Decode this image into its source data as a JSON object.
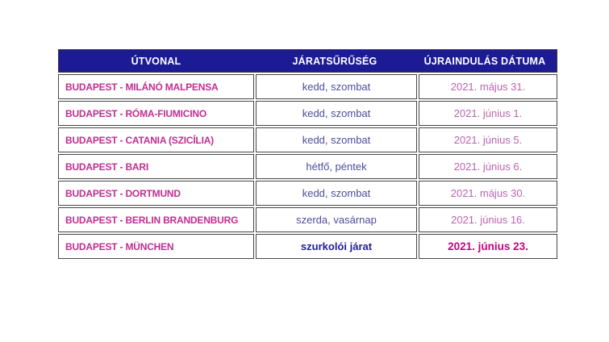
{
  "page": {
    "background_color": "#ffffff"
  },
  "table": {
    "columns": [
      "ÚTVONAL",
      "JÁRATSŰRŰSÉG",
      "ÚJRAINDULÁS DÁTUMA"
    ],
    "rows": [
      {
        "route": "BUDAPEST - MILÁNÓ MALPENSA",
        "frequency": "kedd, szombat",
        "restart_date": "2021. május 31.",
        "highlight": false
      },
      {
        "route": "BUDAPEST - RÓMA-FIUMICINO",
        "frequency": "kedd, szombat",
        "restart_date": "2021. június 1.",
        "highlight": false
      },
      {
        "route": "BUDAPEST - CATANIA (SZICÍLIA)",
        "frequency": "kedd, szombat",
        "restart_date": "2021. június 5.",
        "highlight": false
      },
      {
        "route": "BUDAPEST - BARI",
        "frequency": "hétfő, péntek",
        "restart_date": "2021. június 6.",
        "highlight": false
      },
      {
        "route": "BUDAPEST - DORTMUND",
        "frequency": "kedd, szombat",
        "restart_date": "2021. május 30.",
        "highlight": false
      },
      {
        "route": "BUDAPEST - BERLIN BRANDENBURG",
        "frequency": "szerda, vasárnap",
        "restart_date": "2021. június 16.",
        "highlight": false
      },
      {
        "route": "BUDAPEST - MÜNCHEN",
        "frequency": "szurkolói járat",
        "restart_date": "2021. június 23.",
        "highlight": true
      }
    ],
    "colors": {
      "header_background": "#1C1A94",
      "header_text": "#FFFFFF",
      "route_text": "#C02D92",
      "frequency_text": "#4C4C9E",
      "date_text": "#BC64AE",
      "highlight_frequency_text": "#1F1D99",
      "highlight_date_text": "#C30380",
      "cell_border": "#464646"
    }
  }
}
